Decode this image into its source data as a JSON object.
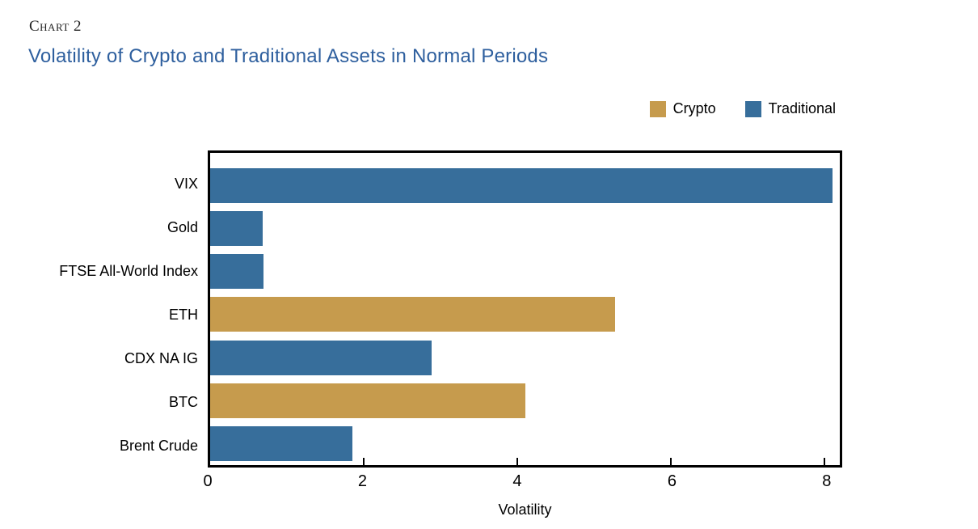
{
  "header": {
    "chart_label": "Chart 2",
    "title": "Volatility of Crypto and Traditional Assets in Normal Periods"
  },
  "colors": {
    "title_blue": "#2e5f9e",
    "crypto_gold": "#c69b4d",
    "traditional_blue": "#376e9b",
    "axis_black": "#000000"
  },
  "chart_data": {
    "type": "bar",
    "orientation": "horizontal",
    "title": "Volatility of Crypto and Traditional Assets in Normal Periods",
    "categories": [
      "VIX",
      "Gold",
      "FTSE All-World Index",
      "ETH",
      "CDX NA IG",
      "BTC",
      "Brent Crude"
    ],
    "values": [
      8.1,
      0.68,
      0.7,
      5.27,
      2.88,
      4.1,
      1.85
    ],
    "groups": [
      "Traditional",
      "Traditional",
      "Traditional",
      "Crypto",
      "Traditional",
      "Crypto",
      "Traditional"
    ],
    "group_colors": {
      "Crypto": "#c69b4d",
      "Traditional": "#376e9b"
    },
    "legend": [
      {
        "label": "Crypto",
        "color": "#c69b4d"
      },
      {
        "label": "Traditional",
        "color": "#376e9b"
      }
    ],
    "legend_position": "top-right",
    "xlabel": "Volatility",
    "ylabel": "",
    "xlim": [
      0,
      8.2
    ],
    "xticks": [
      0,
      2,
      4,
      6,
      8
    ],
    "grid": false
  }
}
